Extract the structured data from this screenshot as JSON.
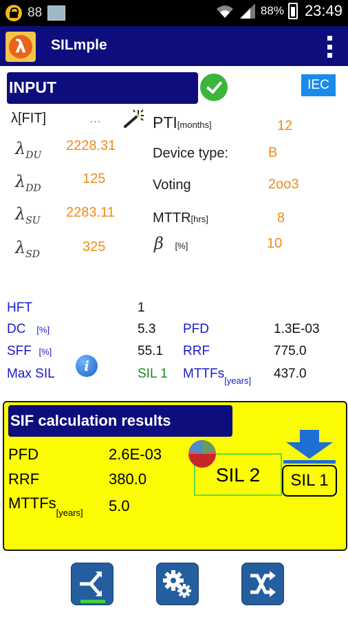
{
  "status_bar": {
    "notification_count": "88",
    "battery_percent": "88%",
    "time": "23:49",
    "icons": [
      "lock-icon",
      "thumbnail-icon",
      "wifi-icon",
      "signal-icon",
      "battery-icon"
    ]
  },
  "app_bar": {
    "logo_glyph": "λ",
    "title": "SILmple",
    "menu_icon": "overflow-menu-icon"
  },
  "input": {
    "header": "INPUT",
    "badge": "IEC",
    "lambda_fit_label": "λ[FIT]",
    "lambda_fit_value": "...",
    "lambda_du": {
      "symbol": "λ",
      "sub": "DU",
      "value": "2228.31"
    },
    "lambda_dd": {
      "symbol": "λ",
      "sub": "DD",
      "value": "125"
    },
    "lambda_su": {
      "symbol": "λ",
      "sub": "SU",
      "value": "2283.11"
    },
    "lambda_sd": {
      "symbol": "λ",
      "sub": "SD",
      "value": "325"
    },
    "pti_label": "PTI",
    "pti_unit": "[months]",
    "pti_value": "12",
    "device_type_label": "Device type:",
    "device_type_value": "B",
    "voting_label": "Voting",
    "voting_value": "2oo3",
    "mttr_label": "MTTR",
    "mttr_unit": "[hrs]",
    "mttr_value": "8",
    "beta_symbol": "β",
    "beta_unit": "[%]",
    "beta_value": "10"
  },
  "device_results": {
    "hft_label": "HFT",
    "hft_value": "1",
    "dc_label": "DC",
    "dc_unit": "[%]",
    "dc_value": "5.3",
    "sff_label": "SFF",
    "sff_unit": "[%]",
    "sff_value": "55.1",
    "max_sil_label": "Max SIL",
    "max_sil_value": "SIL 1",
    "pfd_label": "PFD",
    "pfd_value": "1.3E-03",
    "rrf_label": "RRF",
    "rrf_value": "775.0",
    "mttfs_label": "MTTFs",
    "mttfs_unit": "[years]",
    "mttfs_value": "437.0"
  },
  "sif": {
    "header": "SIF calculation results",
    "pfd_label": "PFD",
    "pfd_value": "2.6E-03",
    "rrf_label": "RRF",
    "rrf_value": "380.0",
    "mttfs_label": "MTTFs",
    "mttfs_unit": "[years]",
    "mttfs_value": "5.0",
    "sil_calc": "SIL 2",
    "sil_limited": "SIL 1"
  },
  "bottom_buttons": [
    {
      "name": "merge-icon"
    },
    {
      "name": "settings-gears-icon"
    },
    {
      "name": "shuffle-icon"
    }
  ],
  "colors": {
    "header_blue": "#0d0d7e",
    "value_orange": "#f08a1a",
    "label_blue": "#1a1acc",
    "sif_yellow": "#fbfb04",
    "ok_green": "#3cb53c"
  }
}
